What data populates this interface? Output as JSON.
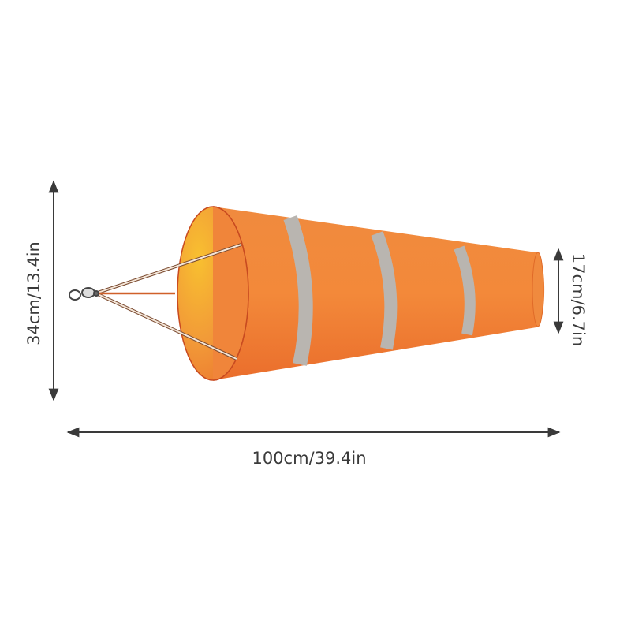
{
  "dimensions": {
    "height": "34cm/13.4in",
    "length": "100cm/39.4in",
    "tail_diameter": "17cm/6.7in"
  },
  "colors": {
    "sock_orange": "#f0803a",
    "sock_inner": "#f5b030",
    "band_silver": "#b8b4b0",
    "arrow": "#3a3a3a"
  }
}
